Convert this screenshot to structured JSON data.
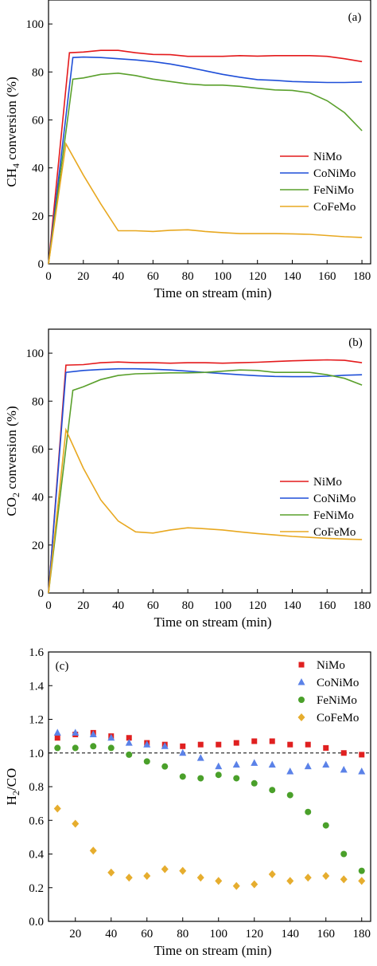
{
  "chart_data": [
    {
      "panel": "a",
      "label": "(a)",
      "type": "line",
      "xlabel": "Time on stream (min)",
      "ylabel_main": "CH",
      "ylabel_sub": "4",
      "ylabel_rest": " conversion (%)",
      "xlim": [
        0,
        185
      ],
      "ylim": [
        0,
        110
      ],
      "xticks": [
        0,
        20,
        40,
        60,
        80,
        100,
        120,
        140,
        160,
        180
      ],
      "yticks": [
        0,
        20,
        40,
        60,
        80,
        100
      ],
      "legend_position": "right",
      "series": [
        {
          "name": "NiMo",
          "color": "#e41a1c",
          "points": [
            [
              0,
              0
            ],
            [
              12,
              88
            ],
            [
              20,
              88.3
            ],
            [
              30,
              89
            ],
            [
              40,
              89
            ],
            [
              50,
              88
            ],
            [
              60,
              87.3
            ],
            [
              70,
              87.2
            ],
            [
              80,
              86.5
            ],
            [
              90,
              86.5
            ],
            [
              100,
              86.5
            ],
            [
              110,
              86.8
            ],
            [
              120,
              86.6
            ],
            [
              130,
              86.8
            ],
            [
              140,
              86.8
            ],
            [
              150,
              86.8
            ],
            [
              160,
              86.5
            ],
            [
              170,
              85.5
            ],
            [
              180,
              84.3
            ]
          ]
        },
        {
          "name": "CoNiMo",
          "color": "#1f4fd8",
          "points": [
            [
              0,
              0
            ],
            [
              14,
              86
            ],
            [
              20,
              86.2
            ],
            [
              30,
              86
            ],
            [
              40,
              85.5
            ],
            [
              50,
              85
            ],
            [
              60,
              84.3
            ],
            [
              70,
              83.3
            ],
            [
              80,
              82
            ],
            [
              90,
              80.5
            ],
            [
              100,
              79
            ],
            [
              110,
              77.8
            ],
            [
              120,
              76.8
            ],
            [
              130,
              76.5
            ],
            [
              140,
              76
            ],
            [
              150,
              75.8
            ],
            [
              160,
              75.6
            ],
            [
              170,
              75.6
            ],
            [
              180,
              75.8
            ]
          ]
        },
        {
          "name": "FeNiMo",
          "color": "#5aa02c",
          "points": [
            [
              0,
              0
            ],
            [
              14,
              77
            ],
            [
              20,
              77.5
            ],
            [
              30,
              79
            ],
            [
              40,
              79.5
            ],
            [
              50,
              78.5
            ],
            [
              60,
              77
            ],
            [
              70,
              76
            ],
            [
              80,
              75
            ],
            [
              90,
              74.5
            ],
            [
              100,
              74.5
            ],
            [
              110,
              74
            ],
            [
              120,
              73.2
            ],
            [
              130,
              72.5
            ],
            [
              140,
              72.3
            ],
            [
              150,
              71.3
            ],
            [
              160,
              68
            ],
            [
              170,
              63
            ],
            [
              180,
              55.5
            ]
          ]
        },
        {
          "name": "CoFeMo",
          "color": "#e8a820",
          "points": [
            [
              0,
              0
            ],
            [
              10,
              50
            ],
            [
              20,
              37
            ],
            [
              30,
              25
            ],
            [
              40,
              13.8
            ],
            [
              50,
              13.8
            ],
            [
              60,
              13.5
            ],
            [
              70,
              14
            ],
            [
              80,
              14.2
            ],
            [
              90,
              13.5
            ],
            [
              100,
              13
            ],
            [
              110,
              12.6
            ],
            [
              120,
              12.6
            ],
            [
              130,
              12.6
            ],
            [
              140,
              12.5
            ],
            [
              150,
              12.3
            ],
            [
              160,
              11.8
            ],
            [
              170,
              11.3
            ],
            [
              180,
              11
            ]
          ]
        }
      ]
    },
    {
      "panel": "b",
      "label": "(b)",
      "type": "line",
      "xlabel": "Time on stream (min)",
      "ylabel_main": "CO",
      "ylabel_sub": "2",
      "ylabel_rest": " conversion (%)",
      "xlim": [
        0,
        185
      ],
      "ylim": [
        0,
        110
      ],
      "xticks": [
        0,
        20,
        40,
        60,
        80,
        100,
        120,
        140,
        160,
        180
      ],
      "yticks": [
        0,
        20,
        40,
        60,
        80,
        100
      ],
      "legend_position": "right",
      "series": [
        {
          "name": "NiMo",
          "color": "#e41a1c",
          "points": [
            [
              0,
              0
            ],
            [
              10,
              95
            ],
            [
              20,
              95.2
            ],
            [
              30,
              96
            ],
            [
              40,
              96.3
            ],
            [
              50,
              96
            ],
            [
              60,
              96
            ],
            [
              70,
              95.8
            ],
            [
              80,
              96
            ],
            [
              90,
              96
            ],
            [
              100,
              95.8
            ],
            [
              110,
              96
            ],
            [
              120,
              96.2
            ],
            [
              130,
              96.5
            ],
            [
              140,
              96.8
            ],
            [
              150,
              97
            ],
            [
              160,
              97.2
            ],
            [
              170,
              97
            ],
            [
              180,
              96
            ]
          ]
        },
        {
          "name": "CoNiMo",
          "color": "#1f4fd8",
          "points": [
            [
              0,
              0
            ],
            [
              10,
              92
            ],
            [
              20,
              92.8
            ],
            [
              30,
              93.2
            ],
            [
              40,
              93.5
            ],
            [
              50,
              93.5
            ],
            [
              60,
              93.3
            ],
            [
              70,
              93
            ],
            [
              80,
              92.5
            ],
            [
              90,
              92
            ],
            [
              100,
              91.5
            ],
            [
              110,
              91
            ],
            [
              120,
              90.6
            ],
            [
              130,
              90.3
            ],
            [
              140,
              90.2
            ],
            [
              150,
              90.2
            ],
            [
              160,
              90.4
            ],
            [
              170,
              90.8
            ],
            [
              180,
              91
            ]
          ]
        },
        {
          "name": "FeNiMo",
          "color": "#5aa02c",
          "points": [
            [
              0,
              0
            ],
            [
              14,
              84.5
            ],
            [
              20,
              86
            ],
            [
              30,
              89
            ],
            [
              40,
              90.7
            ],
            [
              50,
              91.4
            ],
            [
              60,
              91.6
            ],
            [
              70,
              91.8
            ],
            [
              80,
              91.8
            ],
            [
              90,
              92
            ],
            [
              100,
              92.5
            ],
            [
              110,
              93
            ],
            [
              120,
              92.8
            ],
            [
              130,
              92
            ],
            [
              140,
              92
            ],
            [
              150,
              92
            ],
            [
              160,
              91
            ],
            [
              170,
              89.5
            ],
            [
              180,
              86.7
            ]
          ]
        },
        {
          "name": "CoFeMo",
          "color": "#e8a820",
          "points": [
            [
              0,
              0
            ],
            [
              10,
              68
            ],
            [
              20,
              52
            ],
            [
              30,
              38.8
            ],
            [
              40,
              30
            ],
            [
              50,
              25.5
            ],
            [
              60,
              25
            ],
            [
              70,
              26.3
            ],
            [
              80,
              27.2
            ],
            [
              90,
              26.8
            ],
            [
              100,
              26.3
            ],
            [
              110,
              25.5
            ],
            [
              120,
              24.8
            ],
            [
              130,
              24.2
            ],
            [
              140,
              23.6
            ],
            [
              150,
              23.2
            ],
            [
              160,
              22.8
            ],
            [
              170,
              22.5
            ],
            [
              180,
              22.3
            ]
          ]
        }
      ]
    },
    {
      "panel": "c",
      "label": "(c)",
      "type": "scatter",
      "xlabel": "Time on stream (min)",
      "ylabel_main": "H",
      "ylabel_sub": "2",
      "ylabel_rest": "/CO",
      "xlim": [
        5,
        185
      ],
      "ylim": [
        0.0,
        1.6
      ],
      "xticks": [
        20,
        40,
        60,
        80,
        100,
        120,
        140,
        160,
        180
      ],
      "yticks": [
        0.0,
        0.2,
        0.4,
        0.6,
        0.8,
        1.0,
        1.2,
        1.4,
        1.6
      ],
      "yticklabels": [
        "0.0",
        "0.2",
        "0.4",
        "0.6",
        "0.8",
        "1.0",
        "1.2",
        "1.4",
        "1.6"
      ],
      "reference_line": 1.0,
      "legend_position": "top-right",
      "x": [
        10,
        20,
        30,
        40,
        50,
        60,
        70,
        80,
        90,
        100,
        110,
        120,
        130,
        140,
        150,
        160,
        170,
        180
      ],
      "series": [
        {
          "name": "NiMo",
          "color": "#e02020",
          "marker": "square",
          "values": [
            1.09,
            1.11,
            1.12,
            1.1,
            1.09,
            1.06,
            1.05,
            1.04,
            1.05,
            1.05,
            1.06,
            1.07,
            1.07,
            1.05,
            1.05,
            1.03,
            1.0,
            0.99
          ]
        },
        {
          "name": "CoNiMo",
          "color": "#5b82e8",
          "marker": "triangle",
          "values": [
            1.12,
            1.12,
            1.11,
            1.09,
            1.06,
            1.05,
            1.04,
            1.0,
            0.97,
            0.92,
            0.93,
            0.94,
            0.93,
            0.89,
            0.92,
            0.93,
            0.9,
            0.89
          ]
        },
        {
          "name": "FeNiMo",
          "color": "#4aa02a",
          "marker": "circle",
          "values": [
            1.03,
            1.03,
            1.04,
            1.03,
            0.99,
            0.95,
            0.92,
            0.86,
            0.85,
            0.87,
            0.85,
            0.82,
            0.78,
            0.75,
            0.65,
            0.57,
            0.4,
            0.3
          ]
        },
        {
          "name": "CoFeMo",
          "color": "#e6ad2e",
          "marker": "diamond",
          "values": [
            0.67,
            0.58,
            0.42,
            0.29,
            0.26,
            0.27,
            0.31,
            0.3,
            0.26,
            0.24,
            0.21,
            0.22,
            0.28,
            0.24,
            0.26,
            0.27,
            0.25,
            0.24
          ]
        }
      ]
    }
  ]
}
